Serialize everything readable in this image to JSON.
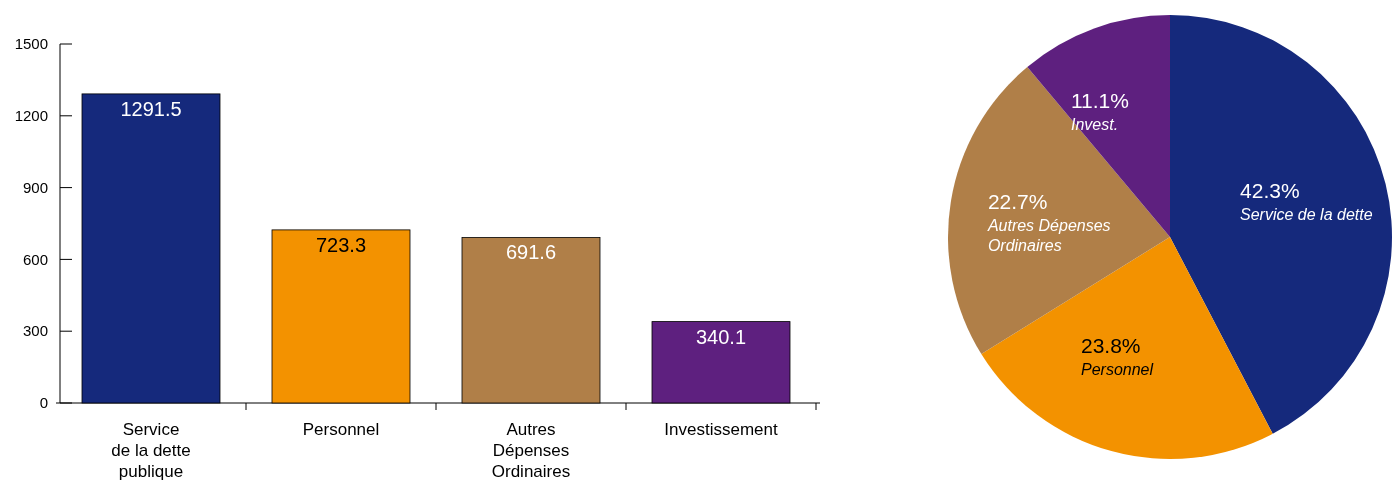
{
  "chart_data": [
    {
      "type": "bar",
      "categories": [
        "Service\nde la dette\npublique",
        "Personnel",
        "Autres\nDépenses\nOrdinaires",
        "Investissement"
      ],
      "values": [
        1291.5,
        723.3,
        691.6,
        340.1
      ],
      "colors": [
        "#15297c",
        "#f39200",
        "#b07f48",
        "#5e207f"
      ],
      "ylim": [
        0,
        1500
      ],
      "yticks": [
        0,
        300,
        600,
        900,
        1200,
        1500
      ],
      "data_labels": true
    },
    {
      "type": "pie",
      "categories": [
        "Service de la dette",
        "Personnel",
        "Autres Dépenses\nOrdinaires",
        "Invest."
      ],
      "values": [
        42.3,
        23.8,
        22.7,
        11.1
      ],
      "value_labels": [
        "42.3%",
        "23.8%",
        "22.7%",
        "11.1%"
      ],
      "colors": [
        "#15297c",
        "#f39200",
        "#b07f48",
        "#5e207f"
      ]
    }
  ]
}
